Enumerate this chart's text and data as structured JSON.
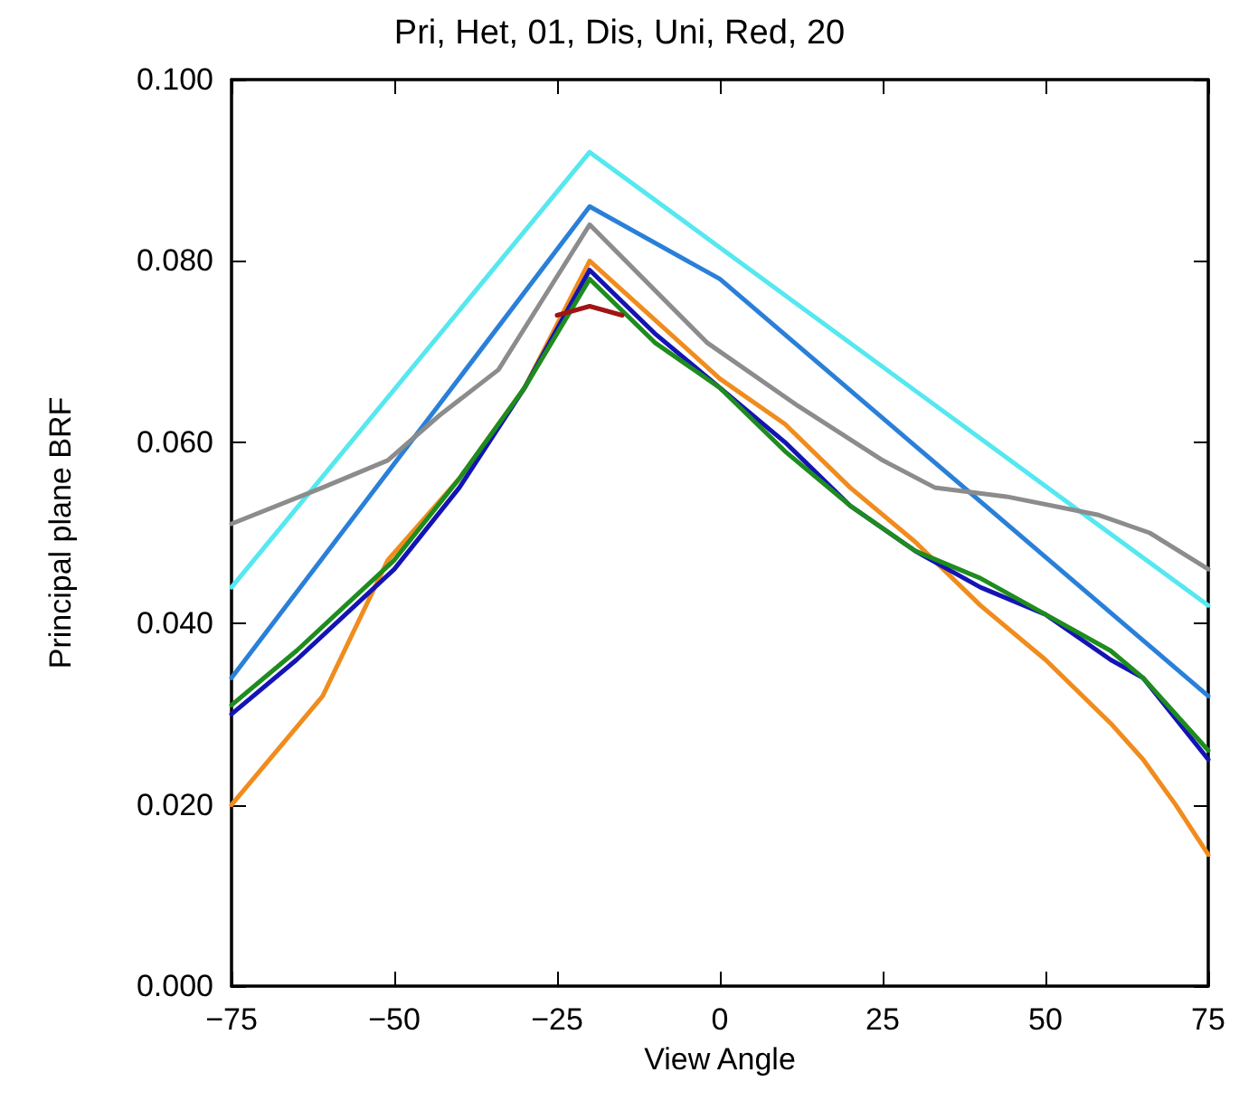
{
  "chart_data": {
    "type": "line",
    "title": "Pri, Het, 01, Dis, Uni, Red, 20",
    "xlabel": "View Angle",
    "ylabel": "Principal plane BRF",
    "x": [
      -75,
      -65,
      -50,
      -40,
      -30,
      -20,
      -10,
      0,
      10,
      20,
      30,
      40,
      50,
      60,
      65,
      75
    ],
    "series": [
      {
        "color": "#55e8f0",
        "x": [
          -75,
          -20,
          75
        ],
        "values": [
          0.044,
          0.092,
          0.042
        ]
      },
      {
        "color": "#2a80d8",
        "x": [
          -75,
          -20,
          0,
          75
        ],
        "values": [
          0.034,
          0.086,
          0.078,
          0.032
        ]
      },
      {
        "color": "#8c8c8c",
        "x": [
          -75,
          -61,
          -51,
          -43,
          -34,
          -27,
          -20,
          -2,
          12,
          25,
          33,
          44,
          58,
          66,
          75
        ],
        "values": [
          0.051,
          0.055,
          0.058,
          0.063,
          0.068,
          0.076,
          0.084,
          0.071,
          0.064,
          0.058,
          0.055,
          0.054,
          0.052,
          0.05,
          0.046
        ]
      },
      {
        "color": "#f08c1e",
        "x": [
          -75,
          -61,
          -51,
          -40,
          -30,
          -20,
          0,
          10,
          20,
          30,
          40,
          50,
          60,
          65,
          70,
          75
        ],
        "values": [
          0.02,
          0.032,
          0.047,
          0.056,
          0.066,
          0.08,
          0.067,
          0.062,
          0.055,
          0.049,
          0.042,
          0.036,
          0.029,
          0.025,
          0.02,
          0.0145
        ]
      },
      {
        "color": "#1414b4",
        "values": [
          0.03,
          0.036,
          0.046,
          0.055,
          0.066,
          0.079,
          0.072,
          0.066,
          0.06,
          0.053,
          0.048,
          0.044,
          0.041,
          0.036,
          0.034,
          0.025
        ]
      },
      {
        "color": "#1e8c1e",
        "values": [
          0.031,
          0.037,
          0.047,
          0.056,
          0.066,
          0.078,
          0.071,
          0.066,
          0.059,
          0.053,
          0.048,
          0.045,
          0.041,
          0.037,
          0.034,
          0.026
        ]
      },
      {
        "color": "#a01414",
        "x": [
          -25,
          -20,
          -15
        ],
        "values": [
          0.074,
          0.075,
          0.074
        ]
      }
    ],
    "xlim": [
      -75,
      75
    ],
    "xticks": [
      -75,
      -50,
      -25,
      0,
      25,
      50,
      75
    ],
    "ylim": [
      0,
      0.1
    ],
    "yticks": [
      {
        "value": 0,
        "label": "0.000"
      },
      {
        "value": 0.02,
        "label": "0.020"
      },
      {
        "value": 0.04,
        "label": "0.040"
      },
      {
        "value": 0.06,
        "label": "0.060"
      },
      {
        "value": 0.08,
        "label": "0.080"
      },
      {
        "value": 0.1,
        "label": "0.100"
      }
    ],
    "grid": false,
    "marker": "none",
    "line_style": "solid"
  }
}
